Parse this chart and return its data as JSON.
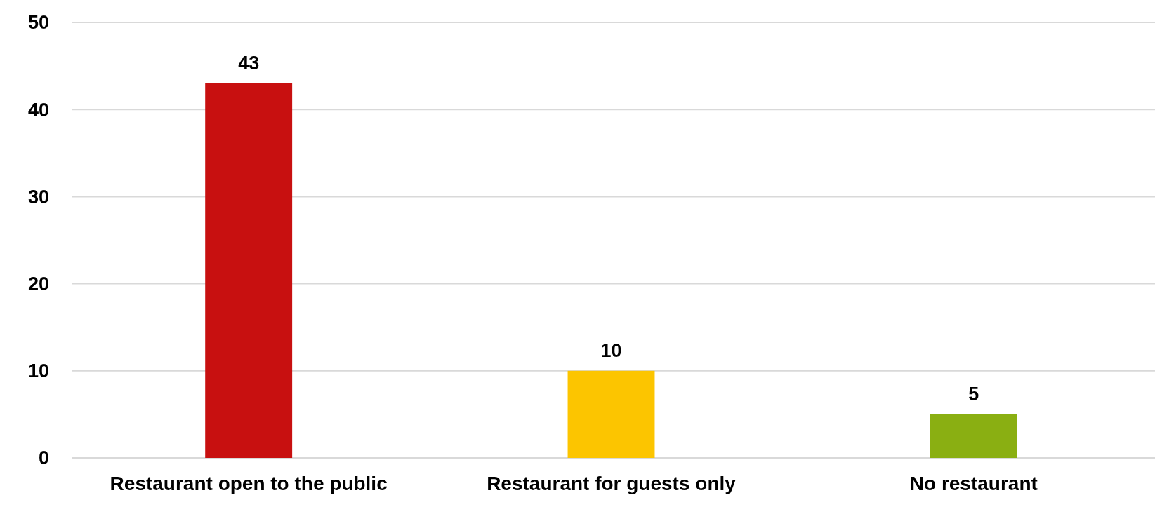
{
  "chart_data": {
    "type": "bar",
    "categories": [
      "Restaurant open to the public",
      "Restaurant for guests only",
      "No restaurant"
    ],
    "values": [
      43,
      10,
      5
    ],
    "colors": [
      "#c81010",
      "#fcc500",
      "#8aaf12"
    ],
    "ylim": [
      0,
      50
    ],
    "yticks": [
      0,
      10,
      20,
      30,
      40,
      50
    ],
    "grid": "y",
    "data_labels": true
  }
}
